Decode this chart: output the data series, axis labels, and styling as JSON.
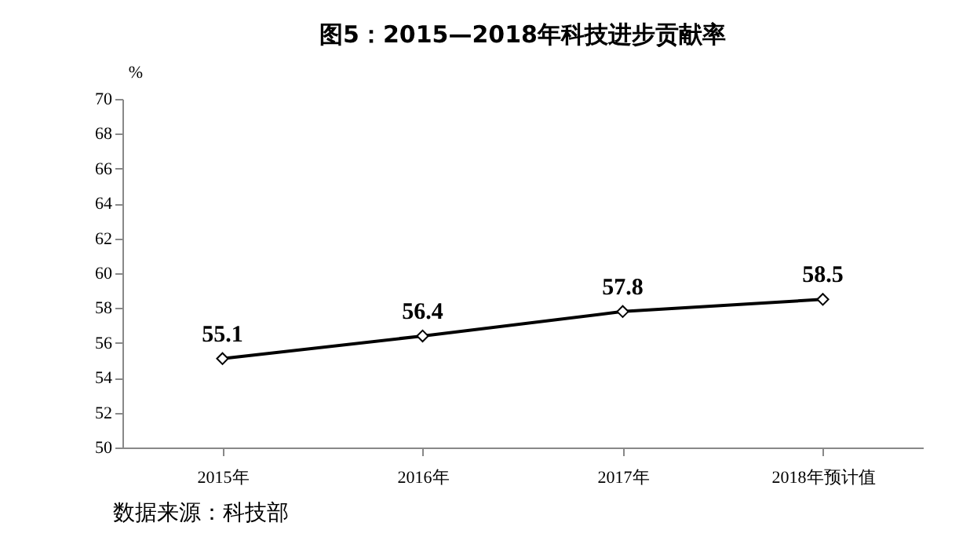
{
  "chart_data": {
    "type": "line",
    "title": "图5：2015—2018年科技进步贡献率",
    "ylabel": "%",
    "categories": [
      "2015年",
      "2016年",
      "2017年",
      "2018年预计值"
    ],
    "series": [
      {
        "color": "#000000",
        "values": [
          55.1,
          56.4,
          57.8,
          58.5
        ]
      }
    ],
    "ylim": [
      50,
      70
    ],
    "yticks": [
      50,
      52,
      54,
      56,
      58,
      60,
      62,
      64,
      66,
      68,
      70
    ],
    "data_labels": true,
    "marker": "diamond",
    "line_style": "solid",
    "annotations": [
      "数据来源：科技部"
    ]
  }
}
